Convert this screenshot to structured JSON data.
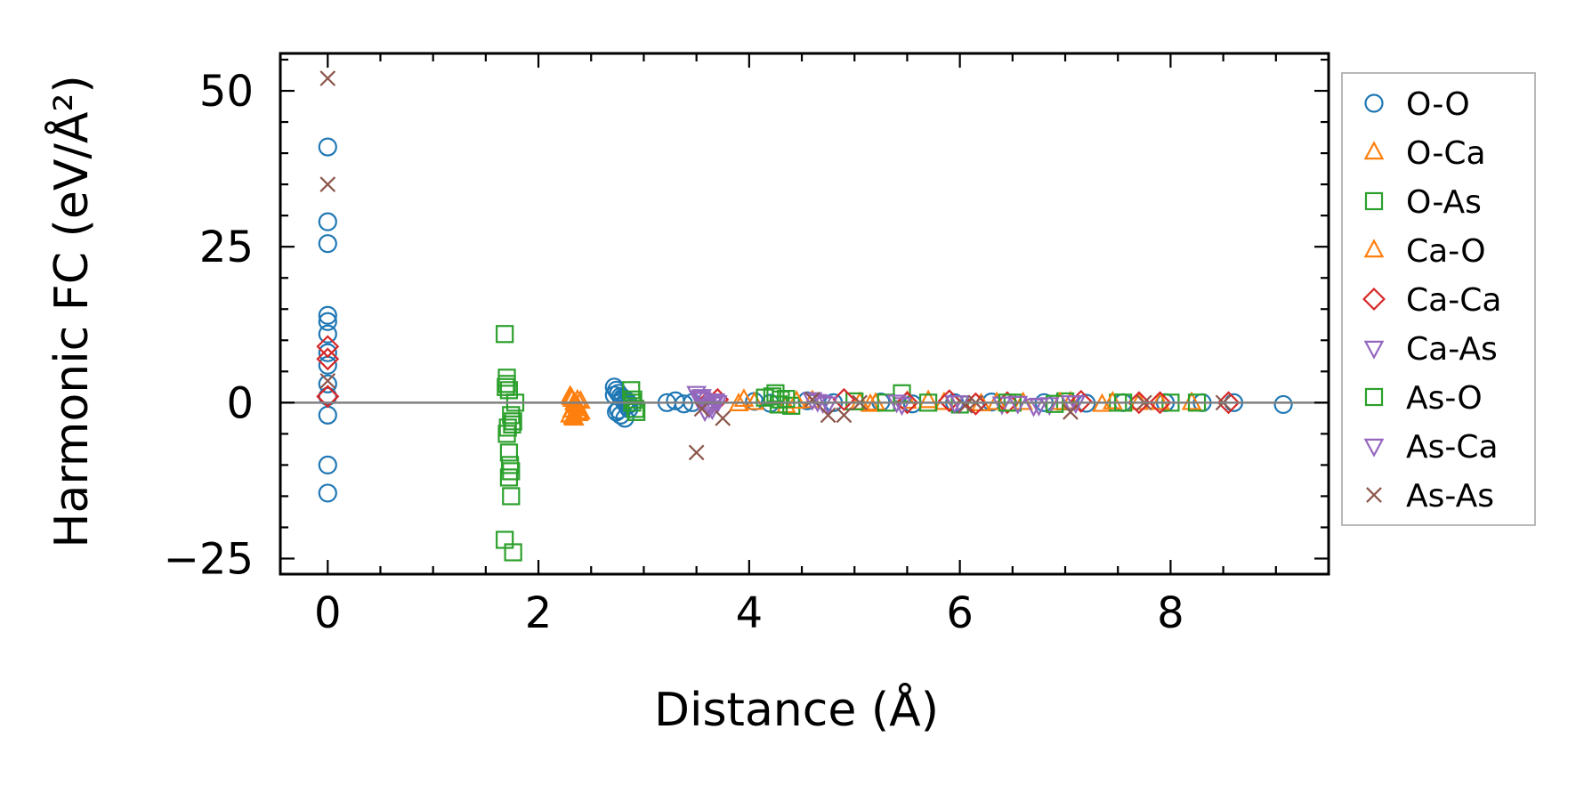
{
  "chart_data": {
    "type": "scatter",
    "xlabel": "Distance (Å)",
    "ylabel": "Harmonic FC (eV/Å²)",
    "xlim": [
      -0.45,
      9.5
    ],
    "ylim": [
      -27.5,
      56
    ],
    "xticks": [
      0,
      2,
      4,
      6,
      8
    ],
    "yticks": [
      -25,
      0,
      25,
      50
    ],
    "xtick_labels": [
      "0",
      "2",
      "4",
      "6",
      "8"
    ],
    "ytick_labels": [
      "−25",
      "0",
      "25",
      "50"
    ],
    "grid": false,
    "zero_line": true,
    "legend_position": "outside-right",
    "series": [
      {
        "name": "O-O",
        "marker": "circle",
        "color": "#1f77b4",
        "x": [
          0,
          0,
          0,
          0,
          0,
          0,
          0,
          0,
          0,
          0,
          0,
          0,
          0,
          2.72,
          2.74,
          2.76,
          2.78,
          2.8,
          2.82,
          2.84,
          2.86,
          2.74,
          2.78,
          2.82,
          2.86,
          2.72,
          2.76,
          2.8,
          2.84,
          3.22,
          3.3,
          3.38,
          3.46,
          4.05,
          4.2,
          4.55,
          4.8,
          5.25,
          5.55,
          5.95,
          6.3,
          6.8,
          7.2,
          7.55,
          7.95,
          8.3,
          8.6,
          9.07
        ],
        "y": [
          41,
          29,
          25.5,
          14,
          13,
          11,
          8,
          6,
          3,
          1,
          -2,
          -10,
          -14.5,
          2.5,
          2,
          1.5,
          1,
          0.5,
          0,
          -0.5,
          -1,
          -1.5,
          -2,
          -2.5,
          -0.3,
          1.2,
          -1.2,
          0.8,
          0.3,
          0,
          0.3,
          -0.2,
          0,
          0.2,
          -0.1,
          0.3,
          0,
          0.1,
          -0.2,
          0,
          0.1,
          0,
          -0.1,
          0,
          0,
          0,
          0,
          -0.3
        ]
      },
      {
        "name": "O-Ca",
        "marker": "triangle-up",
        "color": "#ff7f0e",
        "x": [
          2.3,
          2.32,
          2.34,
          2.36,
          2.38,
          2.4,
          2.3,
          2.34,
          2.38,
          2.32,
          2.36,
          2.4,
          2.33,
          2.37,
          3.95,
          4.05,
          4.35,
          4.6,
          5.05,
          5.15,
          5.5,
          5.85,
          6.2,
          6.6,
          7.05,
          7.35,
          7.7,
          8.2
        ],
        "y": [
          1,
          0.5,
          0,
          -0.5,
          -1,
          -1.5,
          -2,
          -2.5,
          -1.8,
          -1.2,
          -0.3,
          0.2,
          -2.2,
          -0.8,
          0.5,
          0,
          -0.5,
          0.3,
          0,
          -0.3,
          0.2,
          0,
          -0.2,
          0,
          0.1,
          -0.3,
          0,
          0
        ]
      },
      {
        "name": "O-As",
        "marker": "square",
        "color": "#2ca02c",
        "x": [
          1.68,
          1.7,
          1.72,
          1.74,
          1.76,
          1.7,
          1.72,
          1.74,
          1.68,
          1.76,
          1.72,
          1.7,
          1.74,
          1.78,
          2.88,
          2.92,
          2.9,
          4.25,
          4.3,
          4.4,
          5.0,
          5.45,
          6.0,
          6.5,
          7.0,
          7.5,
          8.0
        ],
        "y": [
          11,
          3,
          2,
          -2,
          -3,
          -5,
          -8,
          -11,
          -22,
          -24,
          -12,
          4,
          -15,
          0,
          2,
          -1,
          0.5,
          1.5,
          0.5,
          -0.5,
          0.2,
          1.5,
          -0.3,
          0,
          0.2,
          0,
          0
        ]
      },
      {
        "name": "Ca-O",
        "marker": "triangle-up",
        "color": "#ff7f0e",
        "x": [
          2.31,
          2.35,
          2.39,
          2.33,
          2.37,
          3.9,
          4.45,
          5.2,
          5.7,
          6.35,
          6.95,
          7.45,
          7.9
        ],
        "y": [
          0.8,
          -0.2,
          -1.6,
          -2.4,
          0.4,
          -0.2,
          0.2,
          -0.1,
          0.3,
          0,
          0,
          0.1,
          0
        ]
      },
      {
        "name": "Ca-Ca",
        "marker": "diamond",
        "color": "#d62728",
        "x": [
          0,
          0,
          0,
          0,
          3.6,
          3.7,
          4.9,
          5.5,
          5.9,
          6.15,
          6.45,
          7.15,
          7.7,
          7.9,
          8.55
        ],
        "y": [
          9,
          7,
          1,
          1,
          0,
          0.5,
          0.5,
          0,
          0.3,
          -0.2,
          0,
          0.2,
          0,
          0,
          0
        ]
      },
      {
        "name": "Ca-As",
        "marker": "triangle-down",
        "color": "#9467bd",
        "x": [
          3.5,
          3.55,
          3.6,
          3.65,
          3.7,
          3.55,
          3.65,
          4.6,
          4.7,
          5.45,
          6.0,
          6.4,
          6.7,
          6.85,
          7.1
        ],
        "y": [
          1.5,
          0.5,
          -0.5,
          -1,
          0,
          1,
          -0.2,
          0.5,
          0,
          -0.3,
          0,
          -0.2,
          -0.5,
          -0.3,
          0
        ]
      },
      {
        "name": "As-O",
        "marker": "square",
        "color": "#2ca02c",
        "x": [
          1.71,
          1.75,
          1.69,
          1.73,
          2.89,
          2.93,
          4.15,
          4.22,
          4.28,
          4.35,
          5.3,
          5.7,
          6.45,
          6.9,
          7.55,
          8.25
        ],
        "y": [
          -4,
          -3.5,
          2.5,
          -10,
          0,
          -1.5,
          0.8,
          1,
          -0.3,
          0.6,
          0,
          0,
          0,
          -0.2,
          0,
          0
        ]
      },
      {
        "name": "As-Ca",
        "marker": "triangle-down",
        "color": "#9467bd",
        "x": [
          3.52,
          3.62,
          3.68,
          3.58,
          4.65,
          4.75,
          5.4,
          5.95,
          6.55,
          6.75,
          7.05
        ],
        "y": [
          0.8,
          -0.8,
          0.3,
          -1.3,
          0.2,
          -0.2,
          0.1,
          0,
          -0.1,
          -0.4,
          0
        ]
      },
      {
        "name": "As-As",
        "marker": "x",
        "color": "#8c564b",
        "x": [
          0,
          0,
          0,
          3.5,
          3.55,
          3.75,
          4.6,
          4.75,
          4.9,
          5.05,
          6.05,
          6.15,
          7.05,
          7.75,
          8.5
        ],
        "y": [
          52,
          35,
          3.5,
          -8,
          -1,
          -2.5,
          0.5,
          -2,
          -2,
          0,
          -0.5,
          0,
          -1.5,
          0,
          0
        ]
      }
    ]
  }
}
